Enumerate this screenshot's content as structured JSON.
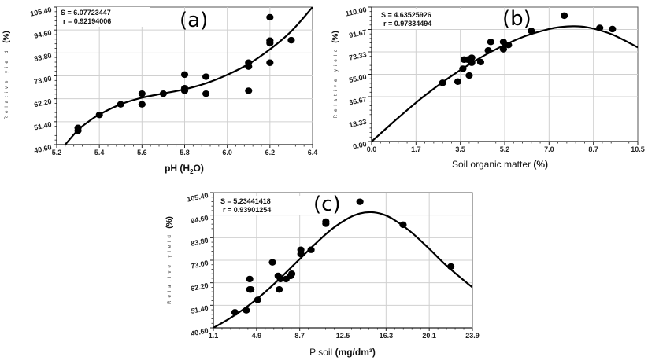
{
  "chart_data": [
    {
      "id": "a",
      "type": "scatter",
      "panel_label": "(a)",
      "title": "",
      "xlabel": "pH",
      "xlabel_unit": "(H2O)",
      "ylabel": "Relative yield",
      "ylabel_unit": "(%)",
      "xlim": [
        5.2,
        6.4
      ],
      "ylim": [
        40.6,
        105.4
      ],
      "xticks": [
        "5.2",
        "5.4",
        "5.6",
        "5.8",
        "6.0",
        "6.2",
        "6.4"
      ],
      "xtick_values": [
        5.2,
        5.4,
        5.6,
        5.8,
        6.0,
        6.2,
        6.4
      ],
      "yticks": [
        "40.60",
        "51.40",
        "62.20",
        "73.00",
        "83.80",
        "94.60",
        "105.40"
      ],
      "ytick_values": [
        40.6,
        51.4,
        62.2,
        73.0,
        83.8,
        94.6,
        105.4
      ],
      "grid": true,
      "stats": {
        "s_label": "S = 6.07723447",
        "r_label": "r = 0.92194006"
      },
      "points": {
        "x": [
          5.3,
          5.3,
          5.4,
          5.5,
          5.6,
          5.6,
          5.7,
          5.8,
          5.8,
          5.8,
          5.9,
          5.9,
          6.1,
          6.1,
          6.1,
          6.2,
          6.2,
          6.2,
          6.2,
          6.3
        ],
        "y": [
          48.5,
          47.2,
          54.6,
          59.6,
          64.6,
          59.6,
          64.6,
          67.2,
          66.0,
          73.6,
          72.6,
          64.6,
          79.2,
          77.4,
          66.0,
          100.6,
          89.6,
          88.4,
          79.2,
          89.8
        ]
      },
      "fit_curve": {
        "x": [
          5.24,
          5.3,
          5.35,
          5.4,
          5.5,
          5.6,
          5.7,
          5.8,
          5.9,
          6.0,
          6.1,
          6.2,
          6.3,
          6.4
        ],
        "y": [
          40.6,
          47.5,
          51.5,
          54.8,
          59.6,
          62.7,
          64.7,
          66.7,
          69.5,
          73.5,
          78.6,
          85.5,
          94.0,
          105.4
        ]
      }
    },
    {
      "id": "b",
      "type": "scatter",
      "panel_label": "(b)",
      "title": "",
      "xlabel": "Soil organic matter",
      "xlabel_unit": "(%)",
      "ylabel": "Relative yield",
      "ylabel_unit": "(%)",
      "xlim": [
        0.0,
        10.5
      ],
      "ylim": [
        0.0,
        110.0
      ],
      "xticks": [
        "0.0",
        "1.7",
        "3.5",
        "5.2",
        "7.0",
        "8.7",
        "10.5"
      ],
      "xtick_values": [
        0.0,
        1.75,
        3.5,
        5.25,
        7.0,
        8.75,
        10.5
      ],
      "yticks": [
        "0.00",
        "18.33",
        "36.67",
        "55.00",
        "73.33",
        "91.67",
        "110.00"
      ],
      "ytick_values": [
        0.0,
        18.33,
        36.67,
        55.0,
        73.33,
        91.67,
        110.0
      ],
      "grid": true,
      "stats": {
        "s_label": "S = 4.63525926",
        "r_label": "r = 0.97834494"
      },
      "points": {
        "x": [
          2.8,
          3.4,
          3.6,
          3.65,
          3.8,
          3.85,
          3.95,
          3.95,
          4.3,
          4.6,
          4.7,
          5.2,
          5.2,
          5.4,
          6.3,
          7.6,
          9.0,
          9.5
        ],
        "y": [
          48.0,
          49.0,
          59.5,
          67.0,
          67.0,
          54.0,
          68.5,
          64.5,
          65.0,
          74.5,
          81.5,
          75.5,
          81.5,
          79.0,
          90.5,
          103.0,
          93.0,
          92.0
        ],
        "note_extra": []
      },
      "fit_curve": {
        "x": [
          0.0,
          1.0,
          2.0,
          3.0,
          4.0,
          5.0,
          6.0,
          7.0,
          7.5,
          8.0,
          8.5,
          9.0,
          9.5,
          10.0,
          10.5
        ],
        "y": [
          0.0,
          18.5,
          36.0,
          51.5,
          65.0,
          76.5,
          85.8,
          92.0,
          93.8,
          94.3,
          93.5,
          91.0,
          87.5,
          82.5,
          77.0
        ]
      }
    },
    {
      "id": "c",
      "type": "scatter",
      "panel_label": "(c)",
      "title": "",
      "xlabel": "P soil",
      "xlabel_unit": "(mg/dm³)",
      "ylabel": "Relative yield",
      "ylabel_unit": "(%)",
      "xlim": [
        1.1,
        23.9
      ],
      "ylim": [
        40.6,
        105.4
      ],
      "xticks": [
        "1.1",
        "4.9",
        "8.7",
        "12.5",
        "16.3",
        "20.1",
        "23.9"
      ],
      "xtick_values": [
        1.1,
        4.9,
        8.7,
        12.5,
        16.3,
        20.1,
        23.9
      ],
      "yticks": [
        "40.60",
        "51.40",
        "62.20",
        "73.00",
        "83.80",
        "94.60",
        "105.40"
      ],
      "ytick_values": [
        40.6,
        51.4,
        62.2,
        73.0,
        83.8,
        94.6,
        105.4
      ],
      "grid": true,
      "stats": {
        "s_label": "S = 5.23441418",
        "r_label": "r = 0.93901254"
      },
      "points": {
        "x": [
          3.0,
          4.0,
          4.3,
          4.3,
          4.4,
          5.0,
          6.3,
          6.8,
          6.9,
          7.0,
          7.5,
          7.9,
          8.0,
          8.8,
          8.8,
          9.7,
          11.0,
          11.0,
          14.0,
          17.8,
          22.0
        ],
        "y": [
          48.0,
          49.0,
          64.0,
          59.0,
          59.0,
          54.0,
          72.0,
          65.5,
          59.0,
          64.0,
          64.0,
          65.5,
          66.5,
          76.0,
          78.0,
          78.0,
          91.5,
          90.5,
          101.0,
          90.0,
          70.0
        ]
      },
      "fit_curve": {
        "x": [
          1.1,
          2.5,
          4.0,
          5.5,
          7.0,
          8.5,
          10.0,
          11.5,
          13.0,
          14.0,
          15.0,
          16.0,
          17.0,
          18.5,
          20.0,
          21.5,
          23.0,
          23.9
        ],
        "y": [
          40.6,
          45.0,
          50.5,
          57.0,
          64.5,
          72.5,
          80.5,
          87.8,
          93.2,
          95.4,
          96.0,
          95.0,
          92.4,
          86.5,
          79.0,
          71.0,
          64.0,
          60.0
        ]
      }
    }
  ]
}
